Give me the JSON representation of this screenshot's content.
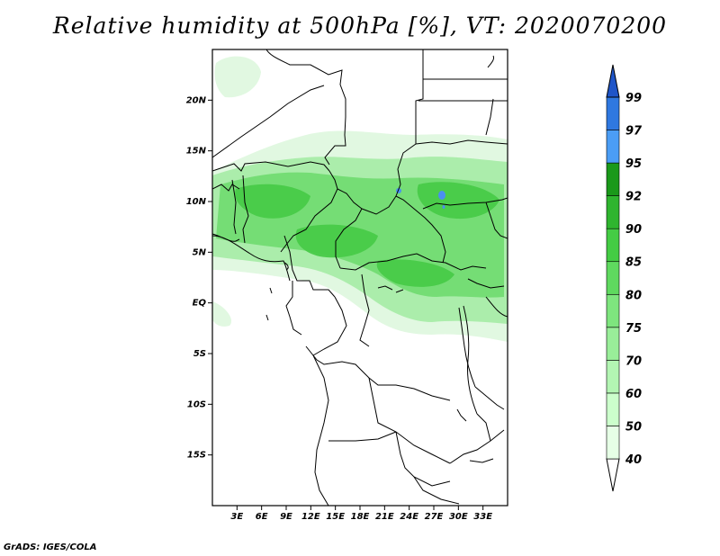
{
  "title": "Relative humidity at 500hPa [%], VT: 2020070200",
  "credit": "GrADS: IGES/COLA",
  "map": {
    "lon_range": [
      0,
      36
    ],
    "lat_range": [
      -20,
      25
    ],
    "lat_ticks": [
      "20N",
      "15N",
      "10N",
      "5N",
      "EQ",
      "5S",
      "10S",
      "15S"
    ],
    "lon_ticks": [
      "3E",
      "6E",
      "9E",
      "12E",
      "15E",
      "18E",
      "21E",
      "24E",
      "27E",
      "30E",
      "33E"
    ]
  },
  "colorbar": {
    "levels": [
      "40",
      "50",
      "60",
      "70",
      "75",
      "80",
      "85",
      "90",
      "92",
      "95",
      "97",
      "99"
    ],
    "colors": [
      "#e6ffe6",
      "#ccffcc",
      "#b3f5b3",
      "#99ee99",
      "#7ee57e",
      "#5fd95f",
      "#44cc44",
      "#2fb52f",
      "#1a991a",
      "#4b9df5",
      "#2f78e0",
      "#1f55c8"
    ],
    "tip_color": "#1f55c8"
  },
  "field_colors": {
    "light": "#dff8df",
    "mid": "#a8eca8",
    "strong": "#72dc72",
    "deep": "#48ca48",
    "peak": "#4b8ff0"
  }
}
